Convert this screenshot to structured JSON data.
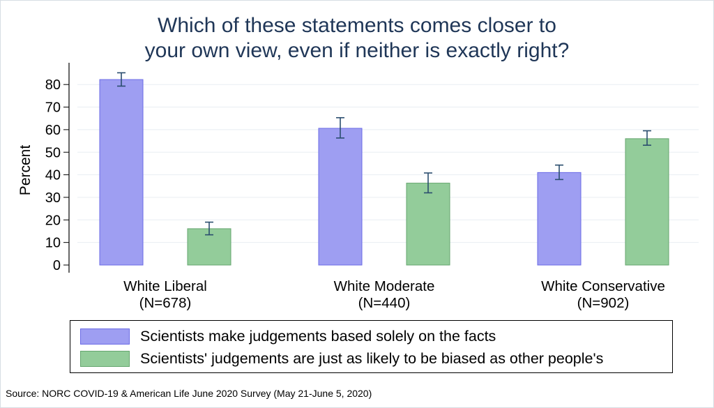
{
  "chart_data": {
    "type": "bar",
    "title_lines": [
      "Which of these statements comes closer to",
      "your own view, even if neither is exactly right?"
    ],
    "ylabel": "Percent",
    "ylim": [
      0,
      85
    ],
    "yticks": [
      0,
      10,
      20,
      30,
      40,
      50,
      60,
      70,
      80
    ],
    "grid": true,
    "categories": [
      {
        "name": "White Liberal",
        "n": "(N=678)"
      },
      {
        "name": "White Moderate",
        "n": "(N=440)"
      },
      {
        "name": "White Conservative",
        "n": "(N=902)"
      }
    ],
    "series": [
      {
        "name": "Scientists make judgements based solely on the facts",
        "color": "#9e9ef2",
        "border": "#6b6be6",
        "values": [
          82.2,
          60.6,
          41.0
        ],
        "error_low": [
          79.3,
          56.3,
          37.9
        ],
        "error_high": [
          85.2,
          65.3,
          44.3
        ]
      },
      {
        "name": "Scientists' judgements are just as likely to be biased as other people's",
        "color": "#93cc9a",
        "border": "#65a66f",
        "values": [
          16.1,
          36.3,
          56.0
        ],
        "error_low": [
          13.4,
          32.0,
          53.1
        ],
        "error_high": [
          19.0,
          40.8,
          59.5
        ]
      }
    ],
    "legend_position": "bottom",
    "source": "Source: NORC COVID-19 & American Life June 2020 Survey (May 21-June 5, 2020)"
  }
}
